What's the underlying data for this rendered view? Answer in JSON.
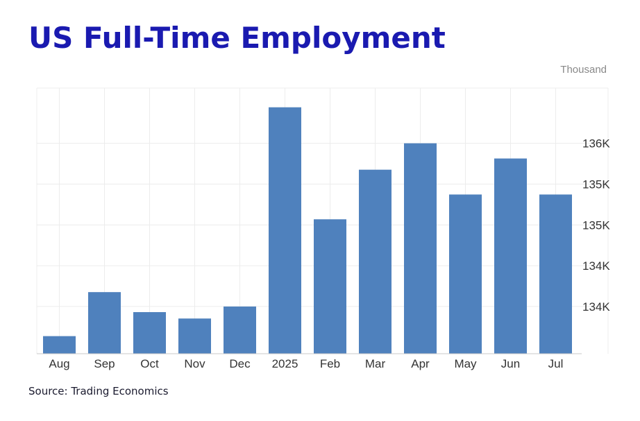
{
  "title": "US Full-Time Employment",
  "unit_label": "Thousand",
  "source": "Source: Trading Economics",
  "colors": {
    "bar": "#4f81bd",
    "title": "#1a1ab0",
    "grid": "#ececec"
  },
  "chart_data": {
    "type": "bar",
    "categories": [
      "Aug",
      "Sep",
      "Oct",
      "Nov",
      "Dec",
      "2025",
      "Feb",
      "Mar",
      "Apr",
      "May",
      "Jun",
      "Jul"
    ],
    "values": [
      133400,
      133950,
      133700,
      133620,
      133770,
      136260,
      134860,
      135480,
      135810,
      135170,
      135620,
      135170
    ],
    "ylim": [
      133180,
      136500
    ],
    "yticks": [
      {
        "value": 133770,
        "label": "134K"
      },
      {
        "value": 134280,
        "label": "134K"
      },
      {
        "value": 134790,
        "label": "135K"
      },
      {
        "value": 135300,
        "label": "135K"
      },
      {
        "value": 135810,
        "label": "136K"
      }
    ],
    "ylabel": "Thousand",
    "xlabel": "",
    "grid": true,
    "y_axis_side": "right"
  }
}
